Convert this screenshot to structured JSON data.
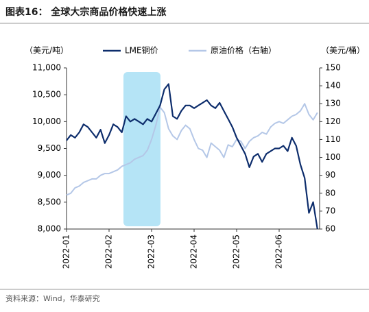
{
  "chart_data": {
    "type": "line",
    "title": "图表16： 全球大宗商品价格快速上涨",
    "ylabel": "（美元/吨）",
    "y2label": "（美元/桶）",
    "source": "资料来源：Wind，华泰研究",
    "categories": [
      "2022-01",
      null,
      null,
      null,
      null,
      null,
      null,
      null,
      null,
      null,
      "2022-02",
      null,
      null,
      null,
      null,
      null,
      null,
      null,
      null,
      null,
      "2022-03",
      null,
      null,
      null,
      null,
      null,
      null,
      null,
      null,
      null,
      "2022-04",
      null,
      null,
      null,
      null,
      null,
      null,
      null,
      null,
      null,
      "2022-05",
      null,
      null,
      null,
      null,
      null,
      null,
      null,
      null,
      null,
      "2022-06",
      null,
      null,
      null,
      null,
      null,
      null,
      null,
      null,
      null
    ],
    "series": [
      {
        "name": "LME铜价",
        "color": "#0d2d6c",
        "values": [
          9650,
          9750,
          9700,
          9800,
          9950,
          9900,
          9800,
          9700,
          9850,
          9600,
          9750,
          9950,
          9900,
          9800,
          10100,
          10000,
          10050,
          10000,
          9950,
          10050,
          10000,
          10150,
          10300,
          10600,
          10700,
          10100,
          10050,
          10200,
          10300,
          10300,
          10250,
          10300,
          10350,
          10400,
          10300,
          10250,
          10350,
          10200,
          10050,
          9900,
          9700,
          9550,
          9400,
          9150,
          9350,
          9400,
          9250,
          9400,
          9450,
          9500,
          9500,
          9550,
          9450,
          9700,
          9550,
          9200,
          8950,
          8300,
          8500,
          8000
        ]
      },
      {
        "name": "原油价格（右轴）",
        "color": "#b4c7e7",
        "axis": "y2",
        "values": [
          79,
          80,
          83,
          84,
          86,
          87,
          88,
          88,
          90,
          91,
          91,
          92,
          93,
          95,
          96,
          97,
          99,
          100,
          101,
          104,
          110,
          118,
          128,
          125,
          116,
          112,
          110,
          115,
          118,
          116,
          110,
          105,
          104,
          100,
          108,
          106,
          104,
          100,
          107,
          106,
          110,
          109,
          105,
          109,
          111,
          112,
          114,
          113,
          117,
          119,
          120,
          119,
          121,
          123,
          124,
          126,
          130,
          124,
          121,
          125
        ]
      }
    ],
    "ylim": [
      8000,
      11000
    ],
    "yticks": [
      {
        "value": 8000,
        "label": "8,000"
      },
      {
        "value": 8500,
        "label": "8,500"
      },
      {
        "value": 9000,
        "label": "9,000"
      },
      {
        "value": 9500,
        "label": "9,500"
      },
      {
        "value": 10000,
        "label": "10,000"
      },
      {
        "value": 10500,
        "label": "10,500"
      },
      {
        "value": 11000,
        "label": "11,000"
      }
    ],
    "y2lim": [
      60,
      150
    ],
    "y2ticks": [
      60,
      70,
      80,
      90,
      100,
      110,
      120,
      130,
      140,
      150
    ],
    "grid": false
  }
}
